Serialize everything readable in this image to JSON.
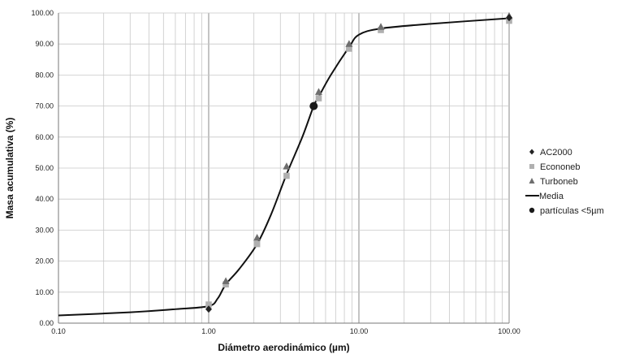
{
  "chart_data": {
    "type": "scatter",
    "xlabel": "Diámetro aerodinámico (µm)",
    "ylabel": "Masa acumulativa (%)",
    "x_scale": "log",
    "xlim": [
      0.1,
      100
    ],
    "ylim": [
      0,
      100
    ],
    "x_ticks": [
      "0.10",
      "1.00",
      "10.00",
      "100.00"
    ],
    "y_ticks": [
      "0.00",
      "10.00",
      "20.00",
      "30.00",
      "40.00",
      "50.00",
      "60.00",
      "70.00",
      "80.00",
      "90.00",
      "100.00"
    ],
    "grid": true,
    "legend_position": "right",
    "series": [
      {
        "name": "AC2000",
        "marker": "diamond",
        "color": "#222222",
        "points": [
          [
            1.0,
            4.5
          ],
          [
            100,
            98.5
          ]
        ]
      },
      {
        "name": "Econoneb",
        "marker": "square",
        "color": "#b0b0b0",
        "points": [
          [
            1.0,
            6.0
          ],
          [
            1.3,
            12.5
          ],
          [
            2.1,
            25.5
          ],
          [
            3.3,
            47.5
          ],
          [
            5.4,
            72.5
          ],
          [
            8.6,
            88.5
          ],
          [
            14,
            94.5
          ],
          [
            100,
            97.5
          ]
        ]
      },
      {
        "name": "Turboneb",
        "marker": "triangle",
        "color": "#6e6e6e",
        "points": [
          [
            1.3,
            13.5
          ],
          [
            2.1,
            27.5
          ],
          [
            3.3,
            50.5
          ],
          [
            5.4,
            74.5
          ],
          [
            8.6,
            90.0
          ],
          [
            14,
            95.5
          ],
          [
            100,
            99.0
          ]
        ]
      },
      {
        "name": "Media",
        "marker": "line",
        "color": "#111111",
        "points": [
          [
            0.1,
            2.5
          ],
          [
            0.3,
            3.5
          ],
          [
            0.6,
            4.5
          ],
          [
            1.0,
            5.5
          ],
          [
            1.15,
            8.0
          ],
          [
            1.3,
            12.5
          ],
          [
            1.6,
            17.5
          ],
          [
            2.1,
            25.5
          ],
          [
            2.6,
            35.0
          ],
          [
            3.3,
            48.0
          ],
          [
            4.2,
            60.0
          ],
          [
            5.0,
            70.0
          ],
          [
            5.4,
            73.0
          ],
          [
            6.5,
            80.0
          ],
          [
            8.6,
            89.0
          ],
          [
            10,
            93.0
          ],
          [
            14,
            95.0
          ],
          [
            30,
            96.5
          ],
          [
            100,
            98.3
          ]
        ]
      },
      {
        "name": "partículas <5µm",
        "marker": "circle",
        "color": "#1a1a1a",
        "points": [
          [
            5.0,
            70.0
          ]
        ]
      }
    ]
  }
}
